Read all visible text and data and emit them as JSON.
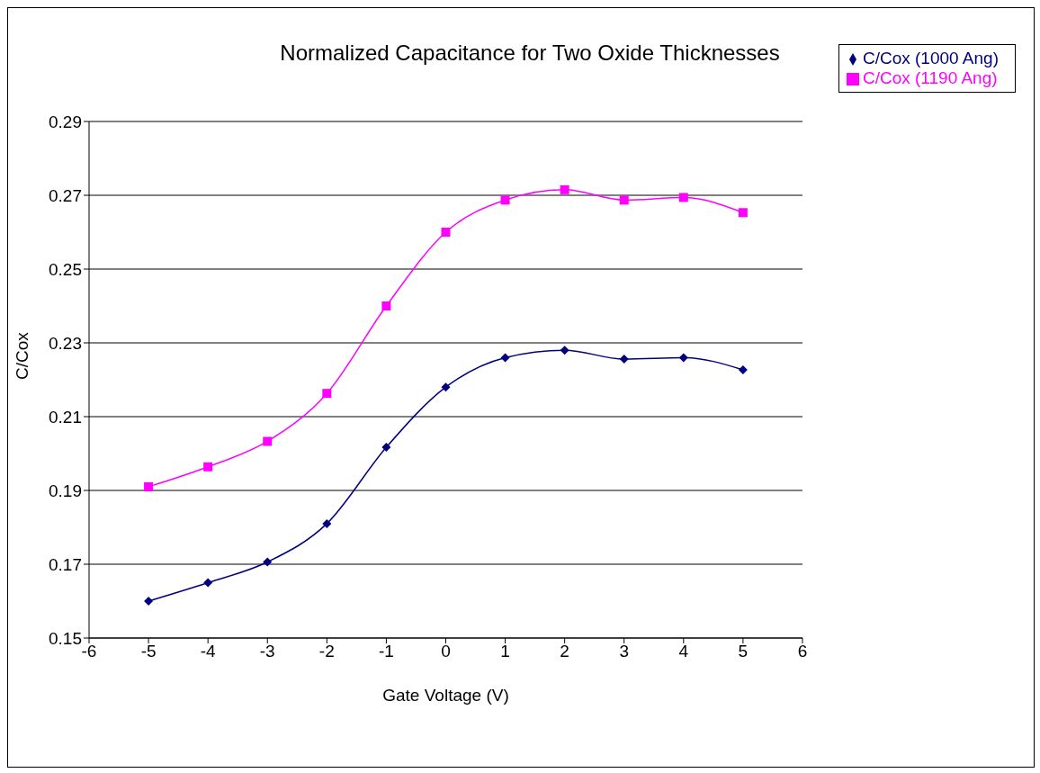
{
  "chart_data": {
    "type": "line",
    "title": "Normalized Capacitance for Two Oxide Thicknesses",
    "xlabel": "Gate Voltage (V)",
    "ylabel": "C/Cox",
    "x": [
      -5,
      -4,
      -3,
      -2,
      -1,
      0,
      1,
      2,
      3,
      4,
      5
    ],
    "series": [
      {
        "name": "C/Cox (1000 Ang)",
        "color": "#000080",
        "marker": "diamond",
        "values": [
          0.16,
          0.165,
          0.1706,
          0.181,
          0.2017,
          0.218,
          0.226,
          0.228,
          0.2256,
          0.226,
          0.2227
        ]
      },
      {
        "name": "C/Cox (1190 Ang)",
        "color": "#ff00ff",
        "marker": "square",
        "values": [
          0.191,
          0.1964,
          0.2033,
          0.2163,
          0.24,
          0.26,
          0.2687,
          0.2715,
          0.2687,
          0.2694,
          0.2653
        ]
      }
    ],
    "xlim": [
      -6,
      6
    ],
    "xticks": [
      -6,
      -5,
      -4,
      -3,
      -2,
      -1,
      0,
      1,
      2,
      3,
      4,
      5,
      6
    ],
    "ylim": [
      0.15,
      0.29
    ],
    "yticks": [
      0.15,
      0.17,
      0.19,
      0.21,
      0.23,
      0.25,
      0.27,
      0.29
    ],
    "grid": "y",
    "legend": "top right",
    "line_style": "solid"
  }
}
